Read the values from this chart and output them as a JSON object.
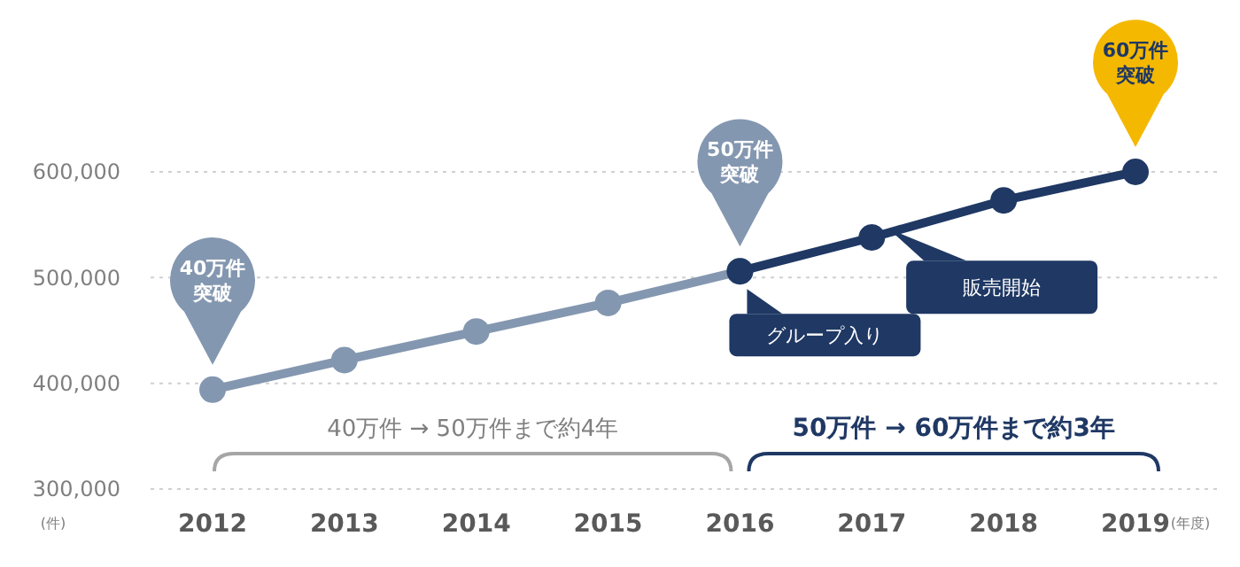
{
  "chart_data": {
    "type": "line",
    "categories": [
      "2012",
      "2013",
      "2014",
      "2015",
      "2016",
      "2017",
      "2018",
      "2019"
    ],
    "series": [
      {
        "color": "#8497b0",
        "values": [
          394000,
          422000,
          449000,
          476000,
          506000,
          null,
          null,
          null
        ]
      },
      {
        "color": "#1f3864",
        "values": [
          null,
          null,
          null,
          null,
          506000,
          538000,
          573000,
          600000
        ]
      }
    ],
    "ylim": [
      300000,
      600000
    ],
    "yticks": [
      {
        "value": 300000,
        "label": "300,000"
      },
      {
        "value": 400000,
        "label": "400,000"
      },
      {
        "value": 500000,
        "label": "500,000"
      },
      {
        "value": 600000,
        "label": "600,000"
      }
    ],
    "ylabel": "(件)",
    "xlabel": "(年度)",
    "grid": "y",
    "marker": "circle",
    "line_style": "solid",
    "annotations": [
      "40万件突破",
      "50万件突破",
      "60万件突破",
      "グループ入り",
      "販売開始",
      "40万件 → 50万件まで約4年",
      "50万件 → 60万件まで約3年"
    ]
  }
}
